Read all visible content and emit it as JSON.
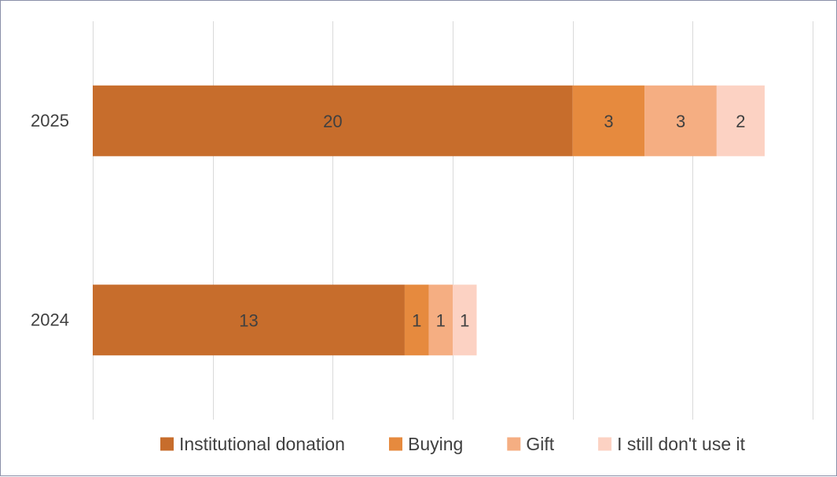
{
  "chart_data": {
    "type": "bar",
    "orientation": "horizontal",
    "stacked": true,
    "categories": [
      "2025",
      "2024"
    ],
    "series": [
      {
        "name": "Institutional donation",
        "values": [
          20,
          13
        ],
        "color": "#C76D2C"
      },
      {
        "name": "Buying",
        "values": [
          3,
          1
        ],
        "color": "#E68A3E"
      },
      {
        "name": "Gift",
        "values": [
          3,
          1
        ],
        "color": "#F5AE82"
      },
      {
        "name": "I still don't use it",
        "values": [
          2,
          1
        ],
        "color": "#FCD2C3"
      }
    ],
    "xlim": [
      0,
      30
    ],
    "x_gridline_step": 5,
    "x_tick_labels_shown": false,
    "grid": true,
    "legend_position": "bottom"
  }
}
